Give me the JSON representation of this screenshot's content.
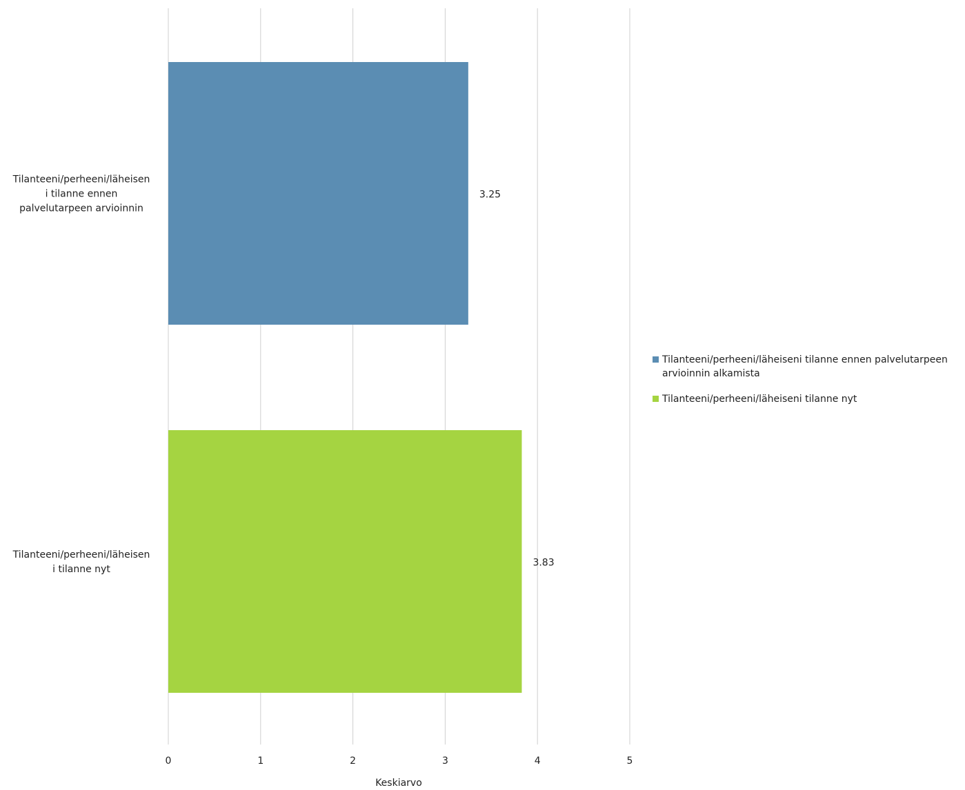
{
  "chart_data": {
    "type": "bar",
    "orientation": "horizontal",
    "categories": [
      "Tilanteeni/perheeni/läheisen i tilanne ennen palvelutarpeen arvioinnin",
      "Tilanteeni/perheeni/läheisen i tilanne nyt"
    ],
    "category_lines": [
      [
        "Tilanteeni/perheeni/läheisen",
        "i tilanne ennen",
        "palvelutarpeen arvioinnin"
      ],
      [
        "Tilanteeni/perheeni/läheisen",
        "i tilanne nyt"
      ]
    ],
    "series": [
      {
        "name": "Tilanteeni/perheeni/läheiseni tilanne ennen palvelutarpeen arvioinnin alkamista",
        "name_lines": [
          "Tilanteeni/perheeni/läheiseni tilanne ennen palvelutarpeen",
          "arvioinnin alkamista"
        ],
        "color": "#5b8db3",
        "value": 3.25,
        "label": "3.25"
      },
      {
        "name": "Tilanteeni/perheeni/läheiseni tilanne nyt",
        "name_lines": [
          "Tilanteeni/perheeni/läheiseni tilanne nyt"
        ],
        "color": "#a5d441",
        "value": 3.83,
        "label": "3.83"
      }
    ],
    "xlim": [
      0,
      5
    ],
    "xticks": [
      "0",
      "1",
      "2",
      "3",
      "4",
      "5"
    ],
    "xlabel": "Keskiarvo",
    "ylabel": "",
    "title": "",
    "grid": "vertical",
    "legend": "right"
  }
}
